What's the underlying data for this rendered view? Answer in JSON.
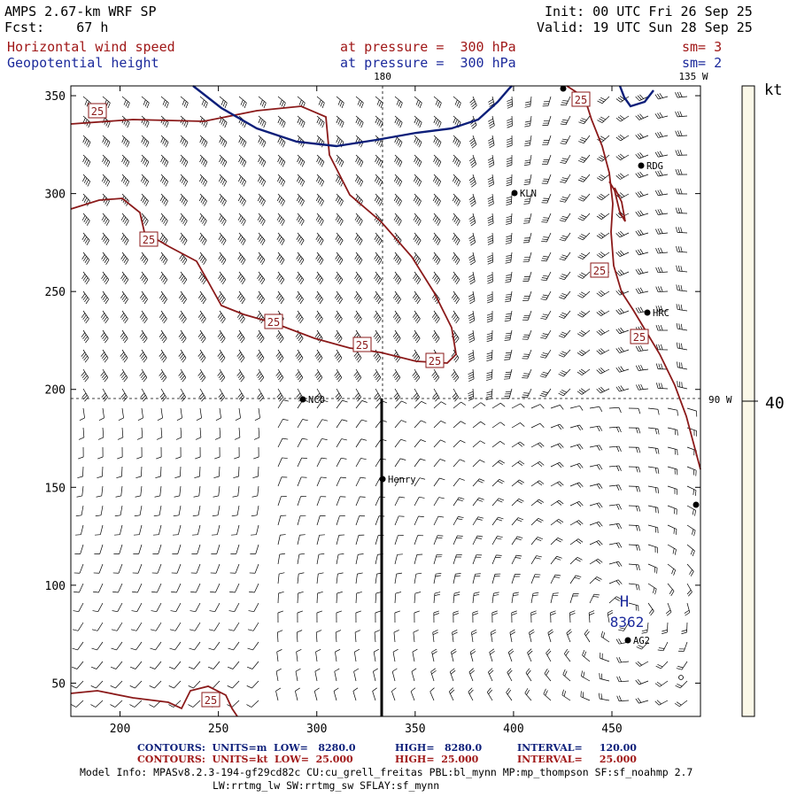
{
  "header": {
    "model_title": "AMPS 2.67-km WRF SP",
    "forecast": "Fcst:    67 h",
    "init": "Init: 00 UTC Fri 26 Sep 25",
    "valid": "Valid: 19 UTC Sun 28 Sep 25",
    "field1_name": "Horizontal wind speed",
    "field1_level": "at pressure =  300 hPa",
    "field1_sm": "sm= 3",
    "field2_name": "Geopotential height",
    "field2_level": "at pressure =  300 hPa",
    "field2_sm": "sm= 2"
  },
  "map": {
    "lon_180": "180",
    "lon_135w": "135 W",
    "lon_90w": "90 W",
    "x_ticks": [
      "200",
      "250",
      "300",
      "350",
      "400",
      "450"
    ],
    "y_ticks": [
      "350",
      "300",
      "250",
      "200",
      "150",
      "100",
      "50"
    ],
    "stations": [
      {
        "label": "RDG"
      },
      {
        "label": "KLN"
      },
      {
        "label": "HRC"
      },
      {
        "label": "NCO"
      },
      {
        "label": "Henry"
      },
      {
        "label": "AG2"
      }
    ],
    "contour_labels": [
      "25",
      "25",
      "25",
      "25",
      "25",
      "25",
      "25",
      "25"
    ],
    "high_marker": "H",
    "high_value": "8362"
  },
  "colorbar": {
    "units": "kt",
    "tick": "40",
    "fill_color": "#fbf8e8"
  },
  "contour_info": {
    "row1_label": "CONTOURS:  UNITS=m  LOW=   8280.0",
    "row1_high": "HIGH=   8280.0",
    "row1_interval": "INTERVAL=     120.00",
    "row2_label": "CONTOURS:  UNITS=kt  LOW=  25.000",
    "row2_high": "HIGH=  25.000",
    "row2_interval": "INTERVAL=     25.000"
  },
  "model_info": {
    "line1": "Model Info: MPASv8.2.3-194-gf29cd82c CU:cu_grell_freitas PBL:bl_mynn MP:mp_thompson SF:sf_noahmp 2.7",
    "line2": "LW:rrtmg_lw SW:rrtmg_sw SFLAY:sf_mynn"
  },
  "colors": {
    "speed_contour": "#8b1a1a",
    "height_contour": "#0d1f7a",
    "barb": "#000000"
  }
}
